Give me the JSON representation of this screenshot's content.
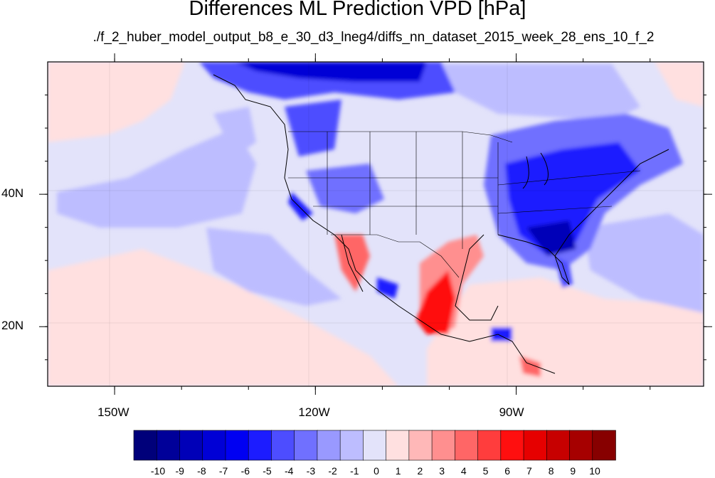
{
  "map": {
    "title": "Differences ML Prediction VPD [hPa]",
    "subtitle": "./f_2_huber_model_output_b8_e_30_d3_lneg4/diffs_nn_dataset_2015_week_28_ens_10_f_2",
    "extent": {
      "lon_min": -160,
      "lon_max": -62,
      "lat_min": 11,
      "lat_max": 60
    },
    "lon_ticks": [
      {
        "value": -150,
        "label": "150W"
      },
      {
        "value": -120,
        "label": "120W"
      },
      {
        "value": -90,
        "label": "90W"
      }
    ],
    "lat_ticks": [
      {
        "value": 40,
        "label": "40N"
      },
      {
        "value": 20,
        "label": "20N"
      }
    ],
    "colorbar": {
      "labels": [
        "-10",
        "-9",
        "-8",
        "-7",
        "-6",
        "-5",
        "-4",
        "-3",
        "-2",
        "-1",
        "0",
        "1",
        "2",
        "3",
        "4",
        "5",
        "6",
        "7",
        "8",
        "9",
        "10"
      ],
      "colors": [
        "#00007a",
        "#000099",
        "#0000b8",
        "#0000d6",
        "#0000f2",
        "#1c1cff",
        "#4d4dff",
        "#7070ff",
        "#9999ff",
        "#bdbdff",
        "#e3e3fa",
        "#ffe0e0",
        "#ffb8b8",
        "#ff8f8f",
        "#ff6666",
        "#ff3d3d",
        "#ff0f0f",
        "#e60000",
        "#c70000",
        "#a60000",
        "#870000"
      ]
    }
  }
}
